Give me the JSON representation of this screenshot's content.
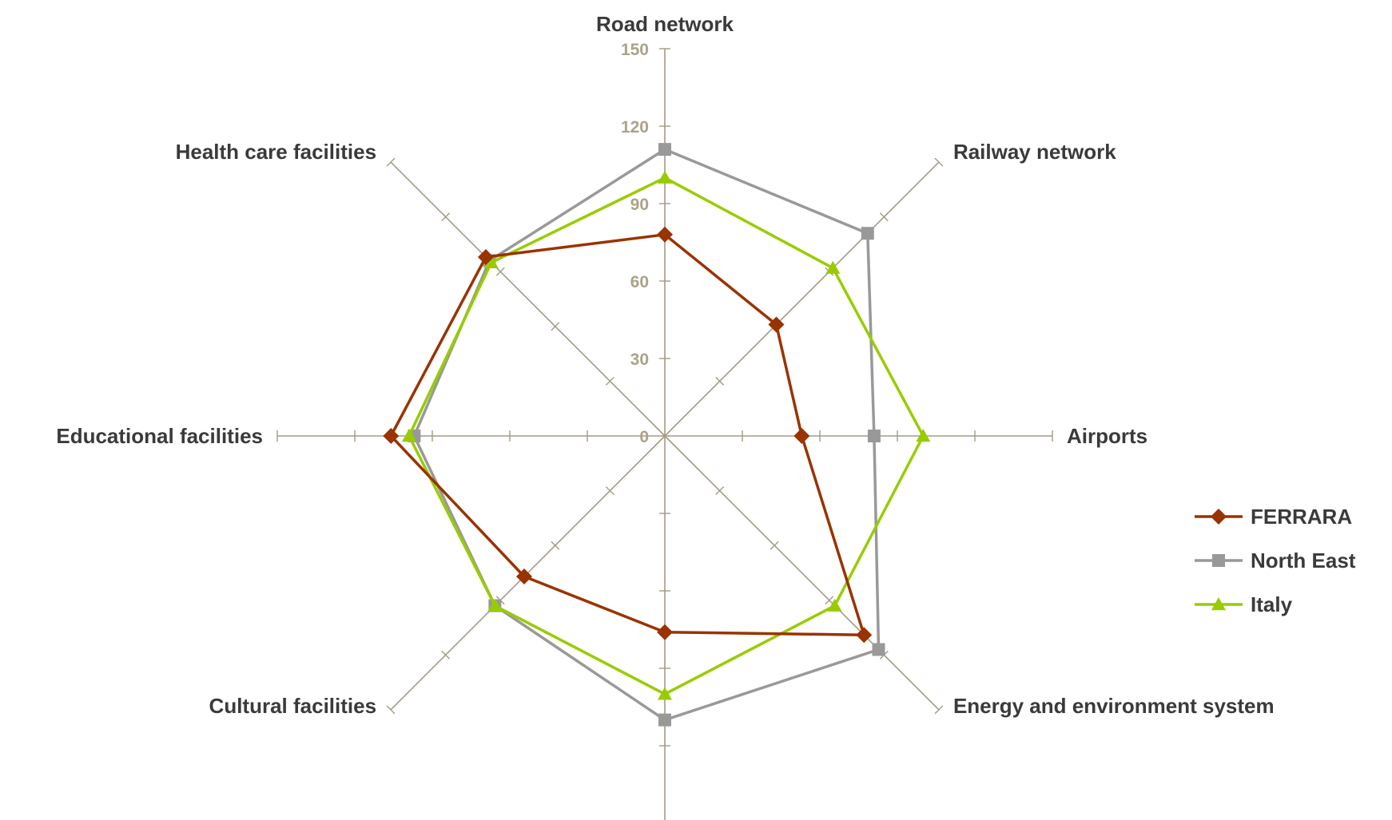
{
  "chart_data": {
    "type": "radar",
    "categories": [
      "Road network",
      "Railway network",
      "Airports",
      "Energy and environment system",
      "",
      "Cultural facilities",
      "Educational facilities",
      "Health care facilities"
    ],
    "rlim": [
      0,
      150
    ],
    "tick_step": 30,
    "tick_labels": [
      "0",
      "30",
      "60",
      "90",
      "120",
      "150"
    ],
    "series": [
      {
        "name": "FERRARA",
        "color": "#993300",
        "marker": "diamond",
        "values": [
          78,
          61,
          53,
          109,
          76,
          77,
          106,
          98
        ]
      },
      {
        "name": "North East",
        "color": "#999999",
        "marker": "square",
        "values": [
          111,
          111,
          81,
          117,
          110,
          93,
          97,
          96
        ]
      },
      {
        "name": "Italy",
        "color": "#99cc00",
        "marker": "triangle",
        "values": [
          100,
          92,
          100,
          93,
          100,
          93,
          99,
          95
        ]
      }
    ],
    "grid": false,
    "legend_position": "right"
  }
}
